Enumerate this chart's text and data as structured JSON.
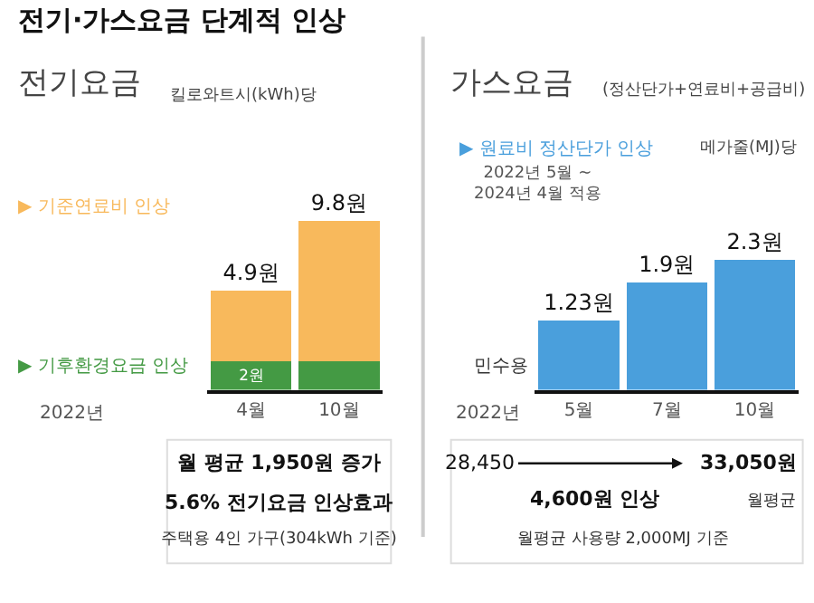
{
  "chart_data": [
    {
      "type": "bar",
      "stacked": true,
      "title": "전기요금",
      "ylabel": "킬로와트시(kWh)당",
      "xlabel": "2022년",
      "legend": false,
      "categories": [
        "4월",
        "10월"
      ],
      "series": [
        {
          "name": "▶ 기후환경요금 인상",
          "color": "#449a44",
          "values": [
            2,
            2
          ],
          "value_labels": [
            "2원",
            null
          ]
        },
        {
          "name": "▶ 기준연료비 인상",
          "color": "#f8b95c",
          "values": [
            4.9,
            9.8
          ],
          "value_labels": [
            "4.9원",
            "9.8원"
          ]
        }
      ],
      "annotations": [
        "전기·가스요금 단계적 인상",
        "월 평균 1,950원 증가",
        "5.6% 전기요금 인상효과",
        "주택용 4인 가구(304kWh 기준)"
      ]
    },
    {
      "type": "bar",
      "title": "가스요금",
      "subtitle": "(정산단가+연료비+공급비)",
      "ylabel": "메가줄(MJ)당",
      "xlabel": "2022년",
      "legend": false,
      "categories": [
        "5월",
        "7월",
        "10월"
      ],
      "series": [
        {
          "name": "▶ 원료비 정산단가 인상",
          "color": "#4a9fdc",
          "values": [
            1.23,
            1.9,
            2.3
          ],
          "value_labels": [
            "1.23원",
            "1.9원",
            "2.3원"
          ]
        }
      ],
      "annotations": [
        "2022년 5월 ~\n2024년 4월 적용",
        "민수용",
        "28,450",
        "4,600원 인상",
        "33,050원",
        "월평균",
        "월평균 사용량 2,000MJ 기준"
      ]
    }
  ]
}
